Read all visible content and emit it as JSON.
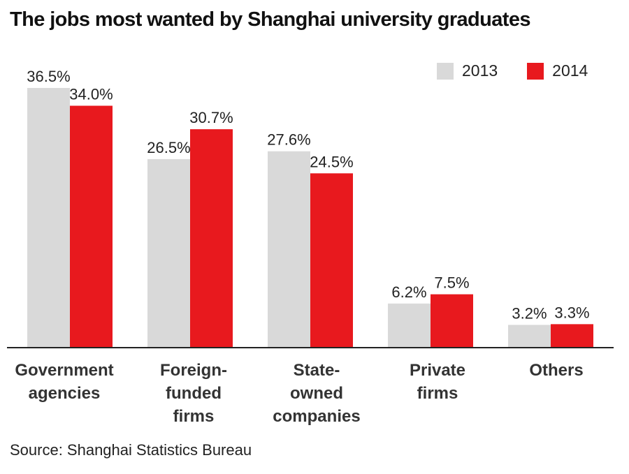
{
  "title": "The jobs most wanted by Shanghai university graduates",
  "source": "Source: Shanghai Statistics Bureau",
  "colors": {
    "2013": "#d9d9d9",
    "2014": "#e8191e",
    "baseline": "#222222"
  },
  "legend": {
    "items": [
      "2013",
      "2014"
    ]
  },
  "chart_data": {
    "type": "bar",
    "title": "The jobs most wanted by Shanghai university graduates",
    "categories": [
      [
        "Government",
        "agencies"
      ],
      [
        "Foreign-",
        "funded",
        "firms"
      ],
      [
        "State-",
        "owned",
        "companies"
      ],
      [
        "Private",
        "firms"
      ],
      [
        "Others"
      ]
    ],
    "series": [
      {
        "name": "2013",
        "values": [
          36.5,
          26.5,
          27.6,
          6.2,
          3.2
        ],
        "labels": [
          "36.5%",
          "26.5%",
          "27.6%",
          "6.2%",
          "3.2%"
        ]
      },
      {
        "name": "2014",
        "values": [
          34.0,
          30.7,
          24.5,
          7.5,
          3.3
        ],
        "labels": [
          "34.0%",
          "30.7%",
          "24.5%",
          "7.5%",
          "3.3%"
        ]
      }
    ],
    "ylim": [
      0,
      36.5
    ],
    "xlabel": "",
    "ylabel": "",
    "grid": false,
    "legend_position": "top-right"
  }
}
